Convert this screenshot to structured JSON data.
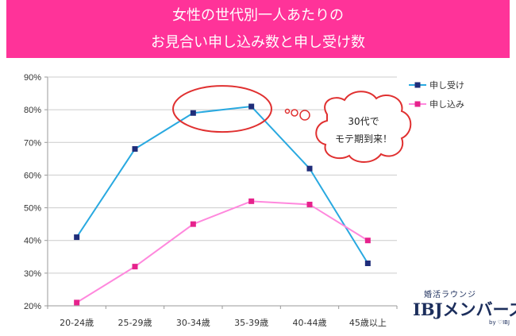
{
  "chart_data": {
    "type": "line",
    "title": [
      "女性の世代別一人あたりの",
      "お見合い申し込み数と申し受け数"
    ],
    "categories": [
      "20-24歳",
      "25-29歳",
      "30-34歳",
      "35-39歳",
      "40-44歳",
      "45歳以上"
    ],
    "series": [
      {
        "name": "申し受け",
        "values": [
          41,
          68,
          79,
          81,
          62,
          33
        ],
        "color": "#29a9e0",
        "marker": "#1f2d7a"
      },
      {
        "name": "申し込み",
        "values": [
          21,
          32,
          45,
          52,
          51,
          40
        ],
        "color": "#ff88dd",
        "marker": "#e6228c"
      }
    ],
    "y_ticks": [
      "20%",
      "30%",
      "40%",
      "50%",
      "60%",
      "70%",
      "80%",
      "90%"
    ],
    "ylim": [
      20,
      90
    ],
    "grid": true,
    "legend": "right",
    "annotation": {
      "lines": [
        "30代で",
        "モテ期到来！"
      ],
      "highlight_categories": [
        "30-34歳",
        "35-39歳"
      ]
    }
  },
  "banner_color": "#ff3399",
  "logo": {
    "sub": "婚活ラウンジ",
    "main": "IBJメンバーズ",
    "by": "by ♡IBJ"
  }
}
